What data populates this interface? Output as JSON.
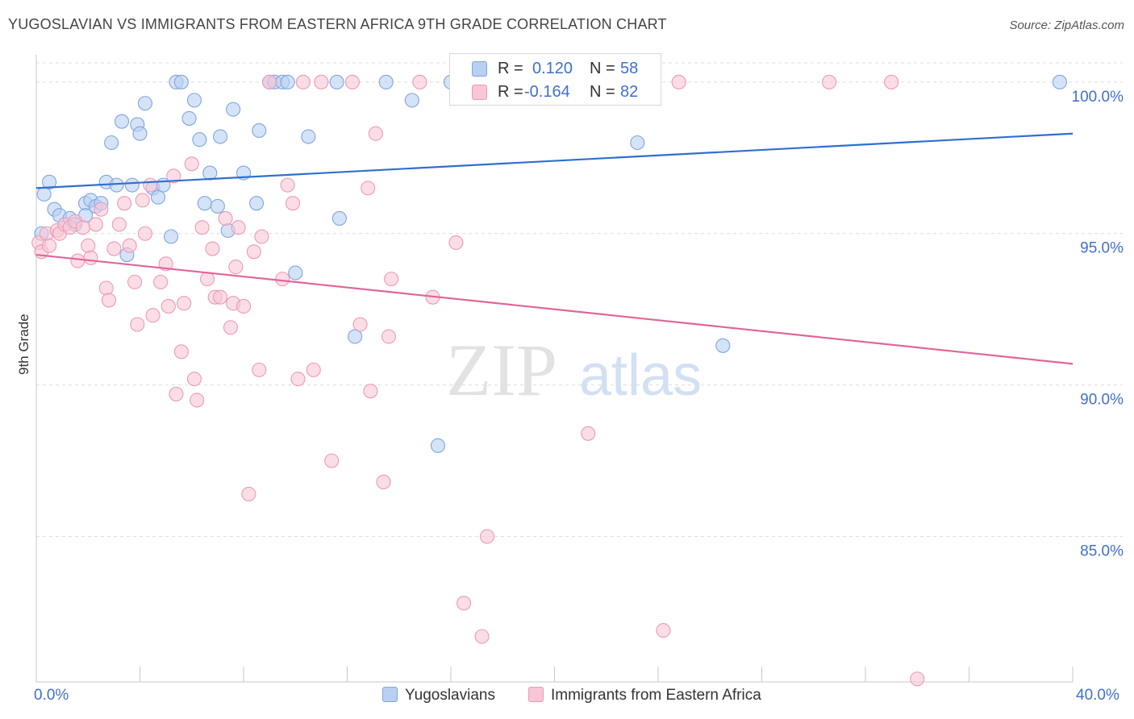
{
  "header": {
    "title": "YUGOSLAVIAN VS IMMIGRANTS FROM EASTERN AFRICA 9TH GRADE CORRELATION CHART",
    "source": "Source: ZipAtlas.com"
  },
  "watermark": {
    "zip": "ZIP",
    "atlas": "atlas"
  },
  "legend_top": {
    "rows": [
      {
        "r_label": "R =",
        "r_value": "0.120",
        "n_label": "N =",
        "n_value": "58"
      },
      {
        "r_label": "R =",
        "r_value": "-0.164",
        "n_label": "N =",
        "n_value": "82"
      }
    ]
  },
  "legend_bottom": {
    "series1": "Yugoslavians",
    "series2": "Immigrants from Eastern Africa"
  },
  "colors": {
    "blue_fill": "#b9d0f2",
    "blue_stroke": "#7ea6e0",
    "blue_line": "#2f6fcf",
    "pink_fill": "#f8c6d6",
    "pink_stroke": "#ee9ab4",
    "pink_line": "#e0659a",
    "tick_label": "#3f6fcf",
    "grid": "#dddddd"
  },
  "chart_data": {
    "type": "scatter",
    "title": "YUGOSLAVIAN VS IMMIGRANTS FROM EASTERN AFRICA 9TH GRADE CORRELATION CHART",
    "xlabel": "",
    "ylabel": "9th Grade",
    "xlim": [
      0,
      40
    ],
    "ylim": [
      80.2,
      100.9
    ],
    "x_tick_labels": [
      "0.0%",
      "40.0%"
    ],
    "y_ticks": [
      85,
      90,
      95,
      100
    ],
    "y_tick_labels": [
      "85.0%",
      "90.0%",
      "95.0%",
      "100.0%"
    ],
    "grid": true,
    "legend_position": "top-center",
    "series": [
      {
        "name": "Yugoslavians",
        "r": 0.12,
        "n": 58,
        "trend": [
          [
            0,
            96.5
          ],
          [
            40,
            98.3
          ]
        ],
        "points": [
          [
            0.2,
            95.0
          ],
          [
            0.3,
            96.3
          ],
          [
            0.5,
            96.7
          ],
          [
            0.7,
            95.8
          ],
          [
            0.9,
            95.6
          ],
          [
            1.1,
            95.3
          ],
          [
            1.3,
            95.5
          ],
          [
            1.5,
            95.3
          ],
          [
            1.9,
            96.0
          ],
          [
            1.9,
            95.6
          ],
          [
            2.1,
            96.1
          ],
          [
            2.3,
            95.9
          ],
          [
            2.5,
            96.0
          ],
          [
            2.7,
            96.7
          ],
          [
            2.9,
            98.0
          ],
          [
            3.1,
            96.6
          ],
          [
            3.3,
            98.7
          ],
          [
            3.5,
            94.3
          ],
          [
            3.7,
            96.6
          ],
          [
            3.9,
            98.6
          ],
          [
            4.0,
            98.3
          ],
          [
            4.2,
            99.3
          ],
          [
            4.5,
            96.5
          ],
          [
            4.7,
            96.2
          ],
          [
            4.9,
            96.6
          ],
          [
            5.2,
            94.9
          ],
          [
            5.4,
            100.0
          ],
          [
            5.6,
            100.0
          ],
          [
            5.9,
            98.8
          ],
          [
            6.1,
            99.4
          ],
          [
            6.3,
            98.1
          ],
          [
            6.5,
            96.0
          ],
          [
            6.7,
            97.0
          ],
          [
            7.0,
            95.9
          ],
          [
            7.1,
            98.2
          ],
          [
            7.4,
            95.1
          ],
          [
            7.6,
            99.1
          ],
          [
            8.0,
            97.0
          ],
          [
            8.5,
            96.0
          ],
          [
            8.6,
            98.4
          ],
          [
            9.0,
            100.0
          ],
          [
            9.2,
            100.0
          ],
          [
            9.5,
            100.0
          ],
          [
            9.7,
            100.0
          ],
          [
            10.0,
            93.7
          ],
          [
            10.5,
            98.2
          ],
          [
            11.6,
            100.0
          ],
          [
            11.7,
            95.5
          ],
          [
            12.3,
            91.6
          ],
          [
            13.5,
            100.0
          ],
          [
            14.5,
            99.4
          ],
          [
            15.5,
            88.0
          ],
          [
            16.0,
            100.0
          ],
          [
            17.5,
            100.0
          ],
          [
            20.8,
            100.0
          ],
          [
            23.2,
            98.0
          ],
          [
            26.5,
            91.3
          ],
          [
            39.5,
            100.0
          ]
        ]
      },
      {
        "name": "Immigrants from Eastern Africa",
        "r": -0.164,
        "n": 82,
        "trend": [
          [
            0,
            94.3
          ],
          [
            40,
            90.7
          ]
        ],
        "points": [
          [
            0.1,
            94.7
          ],
          [
            0.2,
            94.4
          ],
          [
            0.4,
            95.0
          ],
          [
            0.5,
            94.6
          ],
          [
            0.8,
            95.1
          ],
          [
            0.9,
            95.0
          ],
          [
            1.1,
            95.3
          ],
          [
            1.3,
            95.2
          ],
          [
            1.5,
            95.4
          ],
          [
            1.6,
            94.1
          ],
          [
            1.8,
            95.2
          ],
          [
            2.0,
            94.6
          ],
          [
            2.1,
            94.2
          ],
          [
            2.3,
            95.3
          ],
          [
            2.5,
            95.8
          ],
          [
            2.7,
            93.2
          ],
          [
            2.8,
            92.8
          ],
          [
            3.0,
            94.5
          ],
          [
            3.2,
            95.3
          ],
          [
            3.4,
            96.0
          ],
          [
            3.6,
            94.6
          ],
          [
            3.8,
            93.4
          ],
          [
            3.9,
            92.0
          ],
          [
            4.1,
            96.1
          ],
          [
            4.2,
            95.0
          ],
          [
            4.4,
            96.6
          ],
          [
            4.5,
            92.3
          ],
          [
            4.8,
            93.4
          ],
          [
            5.0,
            94.0
          ],
          [
            5.1,
            92.6
          ],
          [
            5.3,
            96.9
          ],
          [
            5.4,
            89.7
          ],
          [
            5.6,
            91.1
          ],
          [
            5.7,
            92.7
          ],
          [
            6.0,
            97.3
          ],
          [
            6.1,
            90.2
          ],
          [
            6.2,
            89.5
          ],
          [
            6.4,
            95.2
          ],
          [
            6.6,
            93.5
          ],
          [
            6.8,
            94.5
          ],
          [
            6.9,
            92.9
          ],
          [
            7.1,
            92.9
          ],
          [
            7.3,
            95.5
          ],
          [
            7.5,
            91.9
          ],
          [
            7.6,
            92.7
          ],
          [
            7.7,
            93.9
          ],
          [
            7.8,
            95.2
          ],
          [
            8.0,
            92.6
          ],
          [
            8.2,
            86.4
          ],
          [
            8.4,
            94.4
          ],
          [
            8.6,
            90.5
          ],
          [
            8.7,
            94.9
          ],
          [
            9.0,
            100.0
          ],
          [
            9.5,
            93.5
          ],
          [
            9.7,
            96.6
          ],
          [
            9.9,
            96.0
          ],
          [
            10.1,
            90.2
          ],
          [
            10.3,
            100.0
          ],
          [
            10.7,
            90.5
          ],
          [
            11.0,
            100.0
          ],
          [
            11.4,
            87.5
          ],
          [
            12.5,
            92.0
          ],
          [
            12.8,
            96.5
          ],
          [
            12.9,
            89.8
          ],
          [
            13.1,
            98.3
          ],
          [
            13.4,
            86.8
          ],
          [
            13.6,
            91.6
          ],
          [
            13.7,
            93.5
          ],
          [
            15.3,
            92.9
          ],
          [
            16.2,
            94.7
          ],
          [
            16.5,
            82.8
          ],
          [
            17.2,
            81.7
          ],
          [
            17.4,
            85.0
          ],
          [
            21.3,
            88.4
          ],
          [
            22.5,
            100.0
          ],
          [
            24.2,
            81.9
          ],
          [
            24.8,
            100.0
          ],
          [
            30.6,
            100.0
          ],
          [
            33.0,
            100.0
          ],
          [
            34.0,
            80.3
          ],
          [
            14.8,
            100.0
          ],
          [
            12.2,
            100.0
          ]
        ]
      }
    ]
  }
}
